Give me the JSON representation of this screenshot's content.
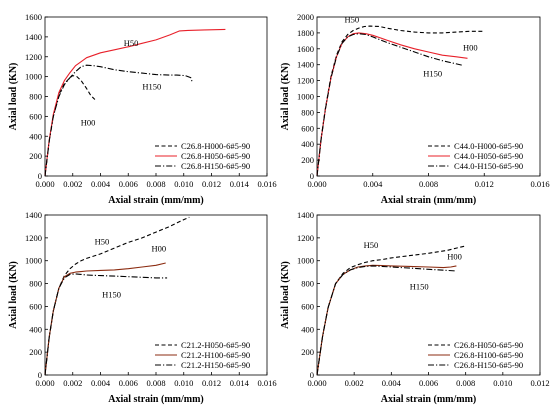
{
  "chart_data": [
    {
      "type": "line",
      "xlabel": "Axial strain (mm/mm)",
      "ylabel": "Axial load (KN)",
      "xlim": [
        0,
        0.016
      ],
      "ylim": [
        0,
        1600
      ],
      "xticks": [
        "0.000",
        "0.002",
        "0.004",
        "0.006",
        "0.008",
        "0.010",
        "0.012",
        "0.014",
        "0.016"
      ],
      "yticks": [
        "0",
        "200",
        "400",
        "600",
        "800",
        "1000",
        "1200",
        "1400",
        "1600"
      ],
      "legend": {
        "position": "bottom-right"
      },
      "series": [
        {
          "name": "C26.8-H000-6#5-90",
          "color": "#000000",
          "dash": "dashed",
          "x": [
            0,
            0.0003,
            0.0006,
            0.001,
            0.0014,
            0.0018,
            0.002,
            0.0023,
            0.0026,
            0.003,
            0.0033,
            0.0036
          ],
          "y": [
            0,
            350,
            600,
            820,
            930,
            990,
            1010,
            1000,
            960,
            880,
            810,
            770
          ]
        },
        {
          "name": "C26.8-H050-6#5-90",
          "color": "#e8202a",
          "dash": "solid",
          "x": [
            0,
            0.0003,
            0.0006,
            0.001,
            0.0014,
            0.0018,
            0.0022,
            0.0027,
            0.003,
            0.004,
            0.005,
            0.006,
            0.007,
            0.008,
            0.009,
            0.0097,
            0.0103,
            0.0115,
            0.013
          ],
          "y": [
            0,
            360,
            620,
            840,
            960,
            1040,
            1110,
            1160,
            1190,
            1240,
            1270,
            1300,
            1335,
            1370,
            1420,
            1460,
            1465,
            1470,
            1475
          ]
        },
        {
          "name": "C26.8-H150-6#5-90",
          "color": "#000000",
          "dash": "dashdot",
          "x": [
            0,
            0.0003,
            0.0006,
            0.001,
            0.0014,
            0.0018,
            0.0022,
            0.0026,
            0.003,
            0.0035,
            0.004,
            0.005,
            0.006,
            0.007,
            0.008,
            0.009,
            0.0095,
            0.0101,
            0.0105,
            0.0106
          ],
          "y": [
            0,
            350,
            600,
            800,
            920,
            990,
            1050,
            1100,
            1115,
            1110,
            1100,
            1070,
            1050,
            1035,
            1020,
            1015,
            1015,
            1010,
            990,
            950
          ]
        }
      ],
      "annotations": [
        {
          "text": "H50",
          "x": 0.0062,
          "y": 1310
        },
        {
          "text": "H150",
          "x": 0.0077,
          "y": 870
        },
        {
          "text": "H00",
          "x": 0.0031,
          "y": 510
        }
      ]
    },
    {
      "type": "line",
      "xlabel": "Axial strain (mm/mm)",
      "ylabel": "Axial load (KN)",
      "xlim": [
        0,
        0.016
      ],
      "ylim": [
        0,
        2000
      ],
      "xticks": [
        "0.000",
        "0.004",
        "0.008",
        "0.012",
        "0.016"
      ],
      "yticks": [
        "0",
        "200",
        "400",
        "600",
        "800",
        "1000",
        "1200",
        "1400",
        "1600",
        "1800",
        "2000"
      ],
      "legend": {
        "position": "bottom-right"
      },
      "series": [
        {
          "name": "C44.0-H000-6#5-90",
          "color": "#000000",
          "dash": "dashed",
          "x": [
            0,
            0.0003,
            0.0006,
            0.001,
            0.0014,
            0.0018,
            0.0022,
            0.0026,
            0.003,
            0.0034,
            0.0038,
            0.0045,
            0.005,
            0.006,
            0.007,
            0.008,
            0.009,
            0.01,
            0.011,
            0.012
          ],
          "y": [
            0,
            480,
            850,
            1250,
            1520,
            1690,
            1780,
            1830,
            1860,
            1880,
            1885,
            1880,
            1860,
            1830,
            1810,
            1800,
            1800,
            1810,
            1820,
            1820
          ]
        },
        {
          "name": "C44.0-H050-6#5-90",
          "color": "#e8202a",
          "dash": "solid",
          "x": [
            0,
            0.0003,
            0.0006,
            0.001,
            0.0014,
            0.0018,
            0.0022,
            0.0026,
            0.003,
            0.0035,
            0.004,
            0.005,
            0.006,
            0.007,
            0.008,
            0.009,
            0.01,
            0.0108
          ],
          "y": [
            0,
            470,
            840,
            1230,
            1500,
            1670,
            1750,
            1790,
            1800,
            1790,
            1770,
            1710,
            1650,
            1600,
            1560,
            1520,
            1500,
            1480
          ]
        },
        {
          "name": "C44.0-H150-6#5-90",
          "color": "#000000",
          "dash": "dashdot",
          "x": [
            0,
            0.0003,
            0.0006,
            0.001,
            0.0014,
            0.0018,
            0.0022,
            0.0026,
            0.003,
            0.0035,
            0.004,
            0.005,
            0.006,
            0.007,
            0.008,
            0.009,
            0.01,
            0.0105
          ],
          "y": [
            0,
            470,
            840,
            1230,
            1500,
            1670,
            1750,
            1780,
            1790,
            1780,
            1750,
            1680,
            1620,
            1560,
            1500,
            1450,
            1410,
            1390
          ]
        }
      ],
      "annotations": [
        {
          "text": "H50",
          "x": 0.0025,
          "y": 1930
        },
        {
          "text": "H00",
          "x": 0.011,
          "y": 1580
        },
        {
          "text": "H150",
          "x": 0.0083,
          "y": 1250
        }
      ]
    },
    {
      "type": "line",
      "xlabel": "Axial strain (mm/mm)",
      "ylabel": "Axial load (KN)",
      "xlim": [
        0,
        0.016
      ],
      "ylim": [
        0,
        1400
      ],
      "xticks": [
        "0.000",
        "0.002",
        "0.004",
        "0.006",
        "0.008",
        "0.010",
        "0.012",
        "0.014",
        "0.016"
      ],
      "yticks": [
        "0",
        "200",
        "400",
        "600",
        "800",
        "1000",
        "1200",
        "1400"
      ],
      "legend": {
        "position": "bottom-right"
      },
      "series": [
        {
          "name": "C21.2-H050-6#5-90",
          "color": "#000000",
          "dash": "dashed",
          "x": [
            0,
            0.0003,
            0.0006,
            0.001,
            0.0014,
            0.0018,
            0.0022,
            0.0026,
            0.003,
            0.004,
            0.005,
            0.006,
            0.007,
            0.008,
            0.009,
            0.0095,
            0.01,
            0.0104
          ],
          "y": [
            0,
            330,
            560,
            760,
            870,
            930,
            970,
            1000,
            1020,
            1060,
            1110,
            1160,
            1200,
            1250,
            1300,
            1330,
            1360,
            1380
          ]
        },
        {
          "name": "C21.2-H100-6#5-90",
          "color": "#8b2b10",
          "dash": "solid",
          "x": [
            0,
            0.0003,
            0.0006,
            0.001,
            0.0014,
            0.0018,
            0.0022,
            0.0026,
            0.003,
            0.004,
            0.005,
            0.006,
            0.007,
            0.008,
            0.0087
          ],
          "y": [
            0,
            330,
            560,
            760,
            860,
            890,
            900,
            905,
            910,
            915,
            920,
            930,
            945,
            960,
            980
          ]
        },
        {
          "name": "C21.2-H150-6#5-90",
          "color": "#000000",
          "dash": "dashdot",
          "x": [
            0,
            0.0003,
            0.0006,
            0.001,
            0.0014,
            0.0018,
            0.0022,
            0.0026,
            0.003,
            0.004,
            0.005,
            0.006,
            0.007,
            0.008,
            0.0088
          ],
          "y": [
            0,
            330,
            560,
            760,
            850,
            880,
            885,
            880,
            875,
            870,
            865,
            860,
            855,
            850,
            850
          ]
        }
      ],
      "annotations": [
        {
          "text": "H50",
          "x": 0.0041,
          "y": 1140
        },
        {
          "text": "H00",
          "x": 0.0082,
          "y": 1080
        },
        {
          "text": "H150",
          "x": 0.0048,
          "y": 680
        }
      ]
    },
    {
      "type": "line",
      "xlabel": "Axial strain (mm/mm)",
      "ylabel": "Axial load (KN)",
      "xlim": [
        0,
        0.012
      ],
      "ylim": [
        0,
        1400
      ],
      "xticks": [
        "0.000",
        "0.002",
        "0.004",
        "0.006",
        "0.008",
        "0.010",
        "0.012"
      ],
      "yticks": [
        "0",
        "200",
        "400",
        "600",
        "800",
        "1000",
        "1200",
        "1400"
      ],
      "legend": {
        "position": "bottom-right"
      },
      "series": [
        {
          "name": "C26.8-H050-6#5-90",
          "color": "#000000",
          "dash": "dashed",
          "x": [
            0,
            0.0003,
            0.0006,
            0.001,
            0.0014,
            0.0018,
            0.0022,
            0.0026,
            0.003,
            0.0035,
            0.004,
            0.005,
            0.006,
            0.007,
            0.0075,
            0.008
          ],
          "y": [
            0,
            340,
            590,
            800,
            890,
            940,
            965,
            985,
            1000,
            1010,
            1025,
            1045,
            1065,
            1090,
            1110,
            1130
          ]
        },
        {
          "name": "C26.8-H100-6#5-90",
          "color": "#8b2b10",
          "dash": "solid",
          "x": [
            0,
            0.0003,
            0.0006,
            0.001,
            0.0014,
            0.0018,
            0.0022,
            0.0026,
            0.003,
            0.0035,
            0.004,
            0.005,
            0.006,
            0.0068,
            0.0072,
            0.0075
          ],
          "y": [
            0,
            340,
            590,
            800,
            880,
            920,
            945,
            955,
            960,
            958,
            955,
            950,
            945,
            940,
            945,
            955
          ]
        },
        {
          "name": "C26.8-H150-6#5-90",
          "color": "#000000",
          "dash": "dashdot",
          "x": [
            0,
            0.0003,
            0.0006,
            0.001,
            0.0014,
            0.0018,
            0.0022,
            0.0026,
            0.003,
            0.0035,
            0.004,
            0.005,
            0.006,
            0.007,
            0.0075
          ],
          "y": [
            0,
            340,
            590,
            800,
            880,
            920,
            940,
            950,
            955,
            950,
            945,
            935,
            925,
            915,
            910
          ]
        }
      ],
      "annotations": [
        {
          "text": "H50",
          "x": 0.0029,
          "y": 1110
        },
        {
          "text": "H00",
          "x": 0.0074,
          "y": 1010
        },
        {
          "text": "H150",
          "x": 0.0055,
          "y": 750
        }
      ]
    }
  ]
}
